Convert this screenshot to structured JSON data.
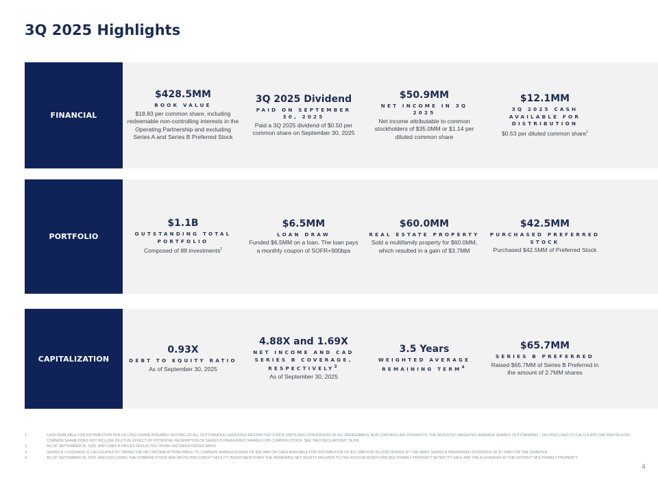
{
  "title": "3Q 2025 Highlights",
  "sections": [
    {
      "label": "FINANCIAL",
      "items": [
        {
          "metric": "$428.5MM",
          "subtitle": "BOOK VALUE",
          "desc": "$18.83 per common share, including redeemable non-controlling interests in the Operating Partnership and excluding Series A and Series B Preferred Stock"
        },
        {
          "metric": "3Q 2025 Dividend",
          "subtitle": "PAID ON SEPTEMBER 30, 2025",
          "desc": "Paid a 3Q 2025 dividend of $0.50 per common share on September 30, 2025"
        },
        {
          "metric": "$50.9MM",
          "subtitle": "NET INCOME IN 3Q 2025",
          "desc": "Net income attributable to common stockholders of $35.0MM or $1.14 per diluted common share"
        },
        {
          "metric": "$12.1MM",
          "subtitle": "3Q 2025 CASH AVAILABLE FOR DISTRIBUTION",
          "desc": "$0.53 per diluted common share",
          "sup": "1"
        }
      ]
    },
    {
      "label": "PORTFOLIO",
      "items": [
        {
          "metric": "$1.1B",
          "subtitle": "OUTSTANDING TOTAL PORTFOLIO",
          "desc": "Composed of 88 investments",
          "sup": "2"
        },
        {
          "metric": "$6.5MM",
          "subtitle": "LOAN DRAW",
          "desc": "Funded $6.5MM on a loan. The loan pays a monthly coupon of SOFR+900bps"
        },
        {
          "metric": "$60.0MM",
          "subtitle": "REAL ESTATE PROPERTY",
          "desc": "Sold a multifamily property for $60.0MM, which resulted in a gain of $3.7MM"
        },
        {
          "metric": "$42.5MM",
          "subtitle": "PURCHASED PREFERRED STOCK",
          "desc": "Purchased $42.5MM of Preferred Stock"
        }
      ]
    },
    {
      "label": "CAPITALIZATION",
      "items": [
        {
          "metric": "0.93X",
          "subtitle": "DEBT TO EQUITY RATIO",
          "desc": "As of September 30, 2025"
        },
        {
          "metric": "4.88X and 1.69X",
          "subtitle": "NET INCOME AND CAD SERIES B COVERAGE, RESPECTIVELY",
          "subsup": "3",
          "desc": "As of September 30, 2025"
        },
        {
          "metric": "3.5 Years",
          "subtitle": "WEIGHTED AVERAGE REMAINING TERM",
          "subsup": "4",
          "desc": ""
        },
        {
          "metric": "$65.7MM",
          "subtitle": "SERIES B PREFERRED",
          "desc": "Raised $65.7MM of Series B Preferred in the amount of 2.7MM shares"
        }
      ]
    }
  ],
  "footnotes": [
    {
      "num": "1.",
      "text": "Cash available for distribution per diluted share assumes vesting of all outstanding unvested restricted stock units and conversion of all redeemable non controlling interests. The adjusted weighted average shares outstanding – diluted used to calculate CAD per diluted common share does not include dilutive effect of potential redemption of Series B Preferred Shares for common stock. See “Reconciliations” slide"
    },
    {
      "num": "2.",
      "text": "As of September 30, 2025, and CMBS B Pieces reflected on an unconsolidated basis."
    },
    {
      "num": "3.",
      "text": "Series B coverage is calculated by taking the net income attributable to common shareholders of $35.0MM or cash available for distribution of $12.1MM for 3Q 2025 divided by the NREF Series B Preferred dividends of $7.2MM for the quarter."
    },
    {
      "num": "4.",
      "text": "As of September 30, 2025, and excluding the common stock and revolving credit facility investments and the remaining net assets related to the Hudson Montford multifamily property after its sale and the Alexander at the District multifamily property"
    }
  ],
  "page_number": "4"
}
